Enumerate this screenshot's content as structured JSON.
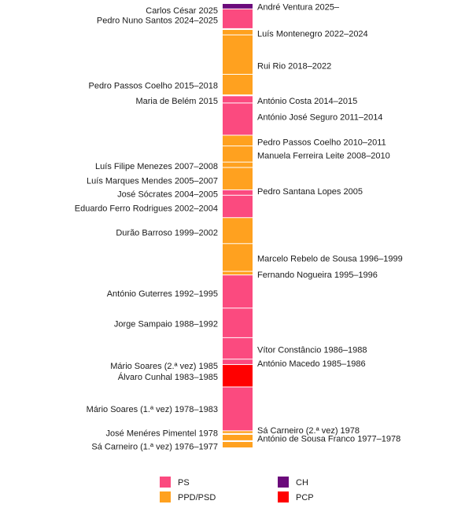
{
  "chart_data": {
    "type": "bar",
    "title": "",
    "xlabel": "",
    "ylabel": "",
    "ylim": [
      1976.0,
      2025.6
    ],
    "grid": false,
    "legend_position": "bottom",
    "colors": {
      "PS": "#fb4a7f",
      "PPD/PSD": "#ffa11f",
      "CH": "#6b0a7b",
      "PCP": "#ff0000"
    },
    "legend": [
      {
        "party": "PS",
        "label": "PS"
      },
      {
        "party": "CH",
        "label": "CH"
      },
      {
        "party": "PPD/PSD",
        "label": "PPD/PSD"
      },
      {
        "party": "PCP",
        "label": "PCP"
      }
    ],
    "segments": [
      {
        "party": "CH",
        "from": 2025.0,
        "to": 2025.6
      },
      {
        "party": "PS",
        "from": 2022.8,
        "to": 2025.0
      },
      {
        "party": "PPD/PSD",
        "from": 2022.1,
        "to": 2022.7
      },
      {
        "party": "PPD/PSD",
        "from": 2017.7,
        "to": 2022.1
      },
      {
        "party": "PPD/PSD",
        "from": 2015.4,
        "to": 2017.7
      },
      {
        "party": "PS",
        "from": 2014.5,
        "to": 2015.3
      },
      {
        "party": "PS",
        "from": 2010.9,
        "to": 2014.5
      },
      {
        "party": "PPD/PSD",
        "from": 2009.7,
        "to": 2010.9
      },
      {
        "party": "PPD/PSD",
        "from": 2007.9,
        "to": 2009.7
      },
      {
        "party": "PPD/PSD",
        "from": 2007.3,
        "to": 2007.9
      },
      {
        "party": "PPD/PSD",
        "from": 2004.8,
        "to": 2007.3
      },
      {
        "party": "PS",
        "from": 2004.2,
        "to": 2004.8
      },
      {
        "party": "PS",
        "from": 2001.7,
        "to": 2004.2
      },
      {
        "party": "PPD/PSD",
        "from": 1998.8,
        "to": 2001.7
      },
      {
        "party": "PPD/PSD",
        "from": 1995.7,
        "to": 1998.8
      },
      {
        "party": "PPD/PSD",
        "from": 1995.3,
        "to": 1995.7
      },
      {
        "party": "PS",
        "from": 1991.6,
        "to": 1995.3
      },
      {
        "party": "PS",
        "from": 1988.3,
        "to": 1991.6
      },
      {
        "party": "PS",
        "from": 1985.9,
        "to": 1988.3
      },
      {
        "party": "PS",
        "from": 1985.3,
        "to": 1985.9
      },
      {
        "party": "PCP",
        "from": 1982.8,
        "to": 1985.3
      },
      {
        "party": "PS",
        "from": 1977.9,
        "to": 1982.8
      },
      {
        "party": "PPD/PSD",
        "from": 1977.6,
        "to": 1977.9
      },
      {
        "party": "PPD/PSD",
        "from": 1976.8,
        "to": 1977.5
      },
      {
        "party": "PPD/PSD",
        "from": 1976.0,
        "to": 1976.7
      }
    ],
    "labels_left": [
      {
        "text": "Carlos César 2025",
        "at": 2024.9
      },
      {
        "text": "Pedro Nuno Santos 2024–2025",
        "at": 2023.8
      },
      {
        "text": "Pedro Passos Coelho 2015–2018",
        "at": 2016.5
      },
      {
        "text": "Maria de Belém 2015",
        "at": 2014.8
      },
      {
        "text": "Luís Filipe Menezes 2007–2008",
        "at": 2007.5
      },
      {
        "text": "Luís Marques Mendes 2005–2007",
        "at": 2005.9
      },
      {
        "text": "José Sócrates 2004–2005",
        "at": 2004.4
      },
      {
        "text": "Eduardo Ferro Rodrigues 2002–2004",
        "at": 2002.8
      },
      {
        "text": "Durão Barroso 1999–2002",
        "at": 2000.1
      },
      {
        "text": "António Guterres 1992–1995",
        "at": 1993.3
      },
      {
        "text": "Jorge Sampaio 1988–1992",
        "at": 1989.9
      },
      {
        "text": "Mário Soares (2.ª vez) 1985",
        "at": 1985.2
      },
      {
        "text": "Álvaro Cunhal 1983–1985",
        "at": 1984.0
      },
      {
        "text": "Mário Soares (1.ª vez) 1978–1983",
        "at": 1980.4
      },
      {
        "text": "José Menéres Pimentel 1978",
        "at": 1977.7
      },
      {
        "text": "Sá Carneiro (1.ª vez) 1976–1977",
        "at": 1976.2
      }
    ],
    "labels_right": [
      {
        "text": "André Ventura 2025–",
        "at": 2025.3
      },
      {
        "text": "Luís Montenegro 2022–2024",
        "at": 2022.3
      },
      {
        "text": "Rui Rio 2018–2022",
        "at": 2018.7
      },
      {
        "text": "António Costa 2014–2015",
        "at": 2014.8
      },
      {
        "text": "António José Seguro 2011–2014",
        "at": 2013.0
      },
      {
        "text": "Pedro Passos Coelho 2010–2011",
        "at": 2010.2
      },
      {
        "text": "Manuela Ferreira Leite 2008–2010",
        "at": 2008.7
      },
      {
        "text": "Pedro Santana Lopes 2005",
        "at": 2004.7
      },
      {
        "text": "Marcelo Rebelo de Sousa 1996–1999",
        "at": 1997.2
      },
      {
        "text": "Fernando Nogueira 1995–1996",
        "at": 1995.4
      },
      {
        "text": "Vítor Constâncio 1986–1988",
        "at": 1987.0
      },
      {
        "text": "António Macedo 1985–1986",
        "at": 1985.5
      },
      {
        "text": "Sá Carneiro (2.ª vez) 1978",
        "at": 1978.0
      },
      {
        "text": "António de Sousa Franco 1977–1978",
        "at": 1977.1
      }
    ]
  }
}
